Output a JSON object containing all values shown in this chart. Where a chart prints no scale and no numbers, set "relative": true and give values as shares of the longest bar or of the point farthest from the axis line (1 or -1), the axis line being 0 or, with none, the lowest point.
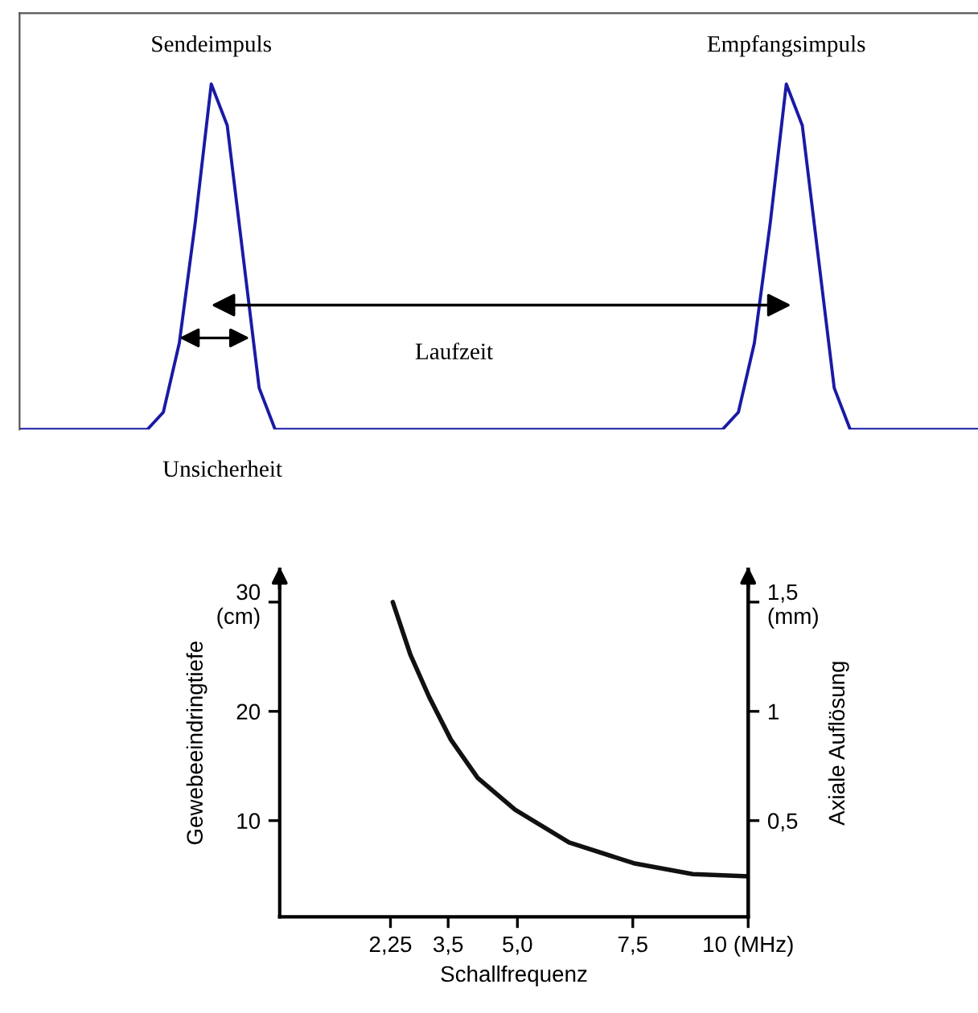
{
  "chart_data": [
    {
      "type": "line",
      "relative": true,
      "categories": [
        null,
        null,
        null,
        null,
        null,
        null,
        null,
        null,
        null,
        null,
        null,
        null,
        null,
        null,
        null,
        null,
        null,
        null,
        null,
        null,
        null,
        null,
        null,
        null,
        null,
        null,
        null,
        null,
        null,
        null,
        null,
        null,
        null,
        null,
        null,
        null,
        null,
        null,
        null,
        null,
        null,
        null,
        null,
        null,
        null,
        null,
        null,
        null,
        null,
        null,
        null,
        null,
        null,
        null,
        null,
        null,
        null,
        null,
        null,
        null,
        null
      ],
      "series": [
        {
          "color": "#1a1aa6",
          "values": [
            0,
            0,
            0,
            0,
            0,
            0,
            0,
            0,
            0,
            0.05,
            0.25,
            0.6,
            1,
            0.88,
            0.5,
            0.12,
            0,
            0,
            0,
            0,
            0,
            0,
            0,
            0,
            0,
            0,
            0,
            0,
            0,
            0,
            0,
            0,
            0,
            0,
            0,
            0,
            0,
            0,
            0,
            0,
            0,
            0,
            0,
            0,
            0,
            0.05,
            0.25,
            0.6,
            1,
            0.88,
            0.5,
            0.12,
            0,
            0,
            0,
            0,
            0,
            0,
            0,
            0,
            0
          ]
        }
      ],
      "annotations": [
        "Sendeimpuls",
        "Empfangsimpuls",
        "Laufzeit",
        "Unsicherheit"
      ]
    },
    {
      "type": "line",
      "xlabel": "Schallfrequenz",
      "ylabel": "Gewebeeindringtiefe",
      "y2label": "Axiale Auflösung",
      "xlim": [
        -0.15,
        10
      ],
      "ylim": [
        1.2,
        33
      ],
      "y2lim": [
        0.06,
        1.65
      ],
      "xticks": [
        {
          "value": 2.25,
          "label": "2,25"
        },
        {
          "value": 3.5,
          "label": "3,5"
        },
        {
          "value": 5,
          "label": "5,0"
        },
        {
          "value": 7.5,
          "label": "7,5"
        },
        {
          "value": 10,
          "label": "10 (MHz)"
        }
      ],
      "yticks": [
        10,
        20,
        {
          "value": 30,
          "label": "30\n(cm)"
        }
      ],
      "y2ticks": [
        {
          "value": 0.5,
          "label": "0,5"
        },
        1,
        {
          "value": 1.5,
          "label": "1,5\n(mm)"
        }
      ],
      "x": [
        2.3,
        2.68,
        3.09,
        3.56,
        4.14,
        4.95,
        6.12,
        7.52,
        8.8,
        10
      ],
      "series": [
        {
          "color": "#111111",
          "values": [
            30,
            25.2,
            21.3,
            17.4,
            13.9,
            11.0,
            8.0,
            6.1,
            5.1,
            4.9
          ]
        }
      ]
    }
  ]
}
